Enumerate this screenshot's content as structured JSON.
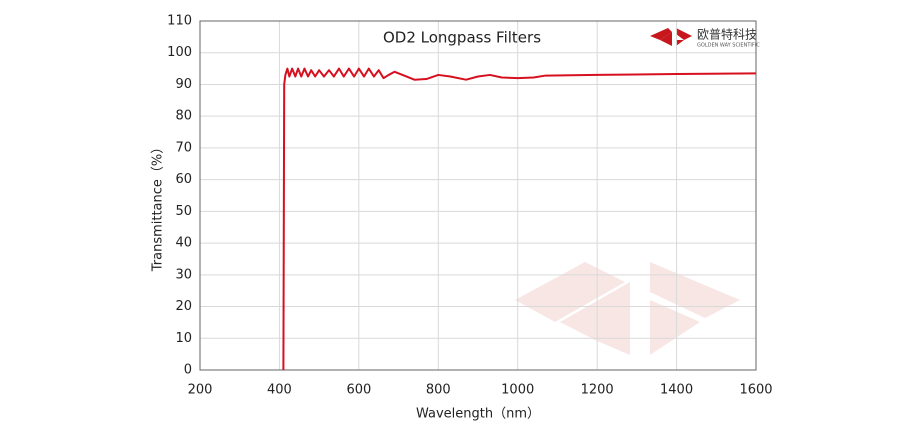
{
  "chart_data": {
    "type": "line",
    "title": "OD2  Longpass Filters",
    "logo_text": "欧普特科技",
    "logo_subtext": "GOLDEN WAY SCIENTIFIC",
    "xlabel": "Wavelength（nm）",
    "ylabel": "Transmittance（%）",
    "xlim": [
      200,
      1600
    ],
    "xticks": [
      200,
      400,
      600,
      800,
      1000,
      1200,
      1400,
      1600
    ],
    "ylim": [
      0,
      110
    ],
    "yticks": [
      0,
      10,
      20,
      30,
      40,
      50,
      60,
      70,
      80,
      90,
      100,
      110
    ],
    "grid": true,
    "x": [
      410,
      412,
      415,
      420,
      425,
      432,
      440,
      447,
      455,
      463,
      472,
      480,
      490,
      500,
      512,
      525,
      537,
      550,
      562,
      575,
      588,
      600,
      613,
      625,
      638,
      650,
      662,
      675,
      690,
      710,
      740,
      770,
      800,
      830,
      870,
      900,
      930,
      960,
      1000,
      1040,
      1070,
      1200,
      1400,
      1600
    ],
    "series": [
      {
        "name": "OD2 Longpass",
        "color": "#d7101f",
        "values": [
          0,
          90,
          93,
          95,
          92.5,
          95,
          92.5,
          95,
          92.5,
          95,
          92.5,
          94.5,
          92.5,
          94.5,
          92.5,
          94.5,
          92.5,
          95,
          92.5,
          95,
          92.5,
          95,
          92.5,
          95,
          92.5,
          94.5,
          92,
          93,
          94,
          93,
          91.5,
          91.7,
          93,
          92.5,
          91.5,
          92.5,
          93,
          92.2,
          92,
          92.2,
          92.8,
          93,
          93.3,
          93.5
        ]
      }
    ]
  }
}
